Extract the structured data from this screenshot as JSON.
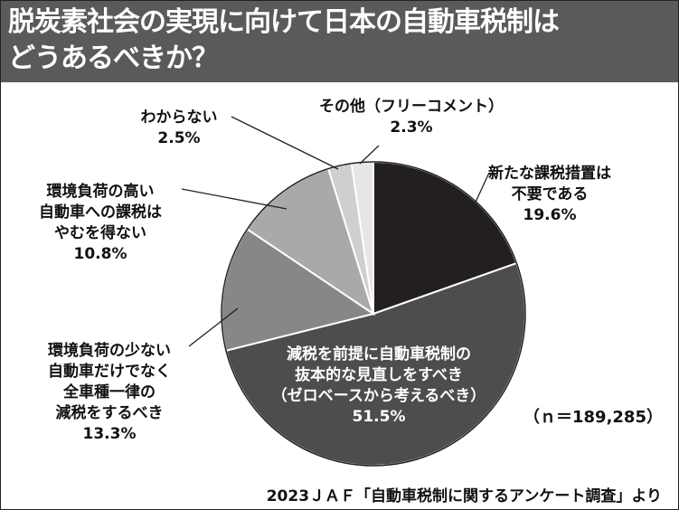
{
  "title": {
    "line1": "脱炭素社会の実現に向けて日本の自動車税制は",
    "line2": "どうあるべきか？"
  },
  "chart_data": {
    "type": "pie",
    "start": "12 o'clock",
    "direction": "clockwise",
    "slices": [
      {
        "label_lines": [
          "新たな課税措置は",
          "不要である"
        ],
        "value": 19.6,
        "value_text": "19.6%",
        "color": "#231f20"
      },
      {
        "label_lines": [
          "減税を前提に自動車税制の",
          "抜本的な見直しをすべき",
          "（ゼロベースから考えるべき）"
        ],
        "value": 51.5,
        "value_text": "51.5%",
        "color": "#4d4d4d"
      },
      {
        "label_lines": [
          "環境負荷の少ない",
          "自動車だけでなく",
          "全車種一律の",
          "減税をするべき"
        ],
        "value": 13.3,
        "value_text": "13.3%",
        "color": "#878787"
      },
      {
        "label_lines": [
          "環境負荷の高い",
          "自動車への課税は",
          "やむを得ない"
        ],
        "value": 10.8,
        "value_text": "10.8%",
        "color": "#a9a9a9"
      },
      {
        "label_lines": [
          "わからない"
        ],
        "value": 2.5,
        "value_text": "2.5%",
        "color": "#cfcfcf"
      },
      {
        "label_lines": [
          "その他（フリーコメント）"
        ],
        "value": 2.3,
        "value_text": "2.3%",
        "color": "#e6e6e6"
      }
    ]
  },
  "sample_size": "（ｎ＝189,285）",
  "source": "2023ＪＡＦ「自動車税制に関するアンケート調査」より"
}
